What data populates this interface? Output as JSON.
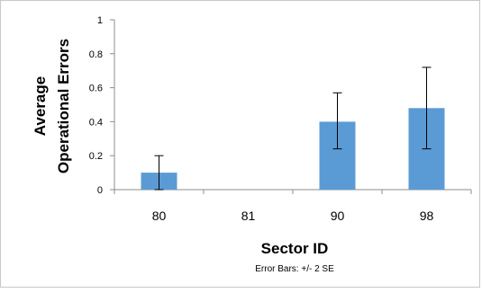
{
  "chart_data": {
    "type": "bar",
    "categories": [
      "80",
      "81",
      "90",
      "98"
    ],
    "values": [
      0.1,
      0,
      0.4,
      0.48
    ],
    "error_low": [
      0.0,
      0,
      0.24,
      0.24
    ],
    "error_high": [
      0.2,
      0,
      0.57,
      0.72
    ],
    "title": "",
    "xlabel": "Sector ID",
    "ylabel_lines": [
      "Average",
      "Operational Errors"
    ],
    "ylim": [
      0,
      1
    ],
    "yticks": [
      "0",
      "0.2",
      "0.4",
      "0.6",
      "0.8",
      "1"
    ],
    "ytick_values": [
      0,
      0.2,
      0.4,
      0.6,
      0.8,
      1
    ],
    "note": "Error Bars: +/- 2 SE",
    "bar_color": "#5b9bd5",
    "grid": false
  }
}
